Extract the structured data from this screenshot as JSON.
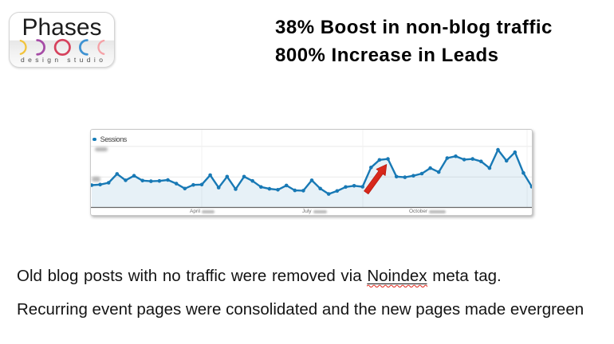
{
  "logo": {
    "name": "Phases",
    "tagline": "design studio",
    "phase_icons": [
      {
        "name": "waxing-crescent-moon",
        "color": "#f2c43c"
      },
      {
        "name": "first-quarter-moon",
        "color": "#a64ca6"
      },
      {
        "name": "full-moon",
        "color": "#d6415c"
      },
      {
        "name": "last-quarter-moon",
        "color": "#3f92d2"
      },
      {
        "name": "waning-crescent-moon",
        "color": "#f5a1a6"
      }
    ]
  },
  "headline": {
    "line1": "38% Boost in non-blog traffic",
    "line2": "800% Increase in Leads"
  },
  "chart_data": {
    "type": "line",
    "title": "",
    "legend": [
      "Sessions"
    ],
    "legend_position": "top-left",
    "series_color": "#1879b5",
    "area_fill": true,
    "x_unit": "week",
    "x_tick_labels": [
      "April",
      "July",
      "October"
    ],
    "x_tick_dates_redacted": true,
    "y_axis_labels_redacted": true,
    "ylim": [
      0,
      1300
    ],
    "gridlines_y": [
      500,
      1000
    ],
    "grid": true,
    "values": [
      365,
      375,
      405,
      550,
      445,
      520,
      440,
      430,
      435,
      450,
      390,
      310,
      370,
      375,
      530,
      325,
      505,
      300,
      505,
      435,
      335,
      305,
      290,
      360,
      280,
      275,
      445,
      310,
      220,
      270,
      335,
      355,
      340,
      655,
      780,
      795,
      505,
      495,
      520,
      555,
      645,
      580,
      810,
      840,
      785,
      795,
      755,
      645,
      945,
      765,
      905,
      565,
      340
    ],
    "annotation": {
      "type": "arrow",
      "color": "#d82418",
      "direction": "up-right",
      "points_at": "traffic spike after noindex cleanup"
    }
  },
  "chart_labels": {
    "legend_label": "Sessions",
    "x1": "April",
    "x2": "July",
    "x3": "October"
  },
  "body": {
    "line1_prefix": "Old blog posts with no traffic were removed via ",
    "line1_keyword": "Noindex",
    "line1_suffix": " meta tag.",
    "line2": "Recurring event pages were consolidated and the new pages made evergreen"
  }
}
